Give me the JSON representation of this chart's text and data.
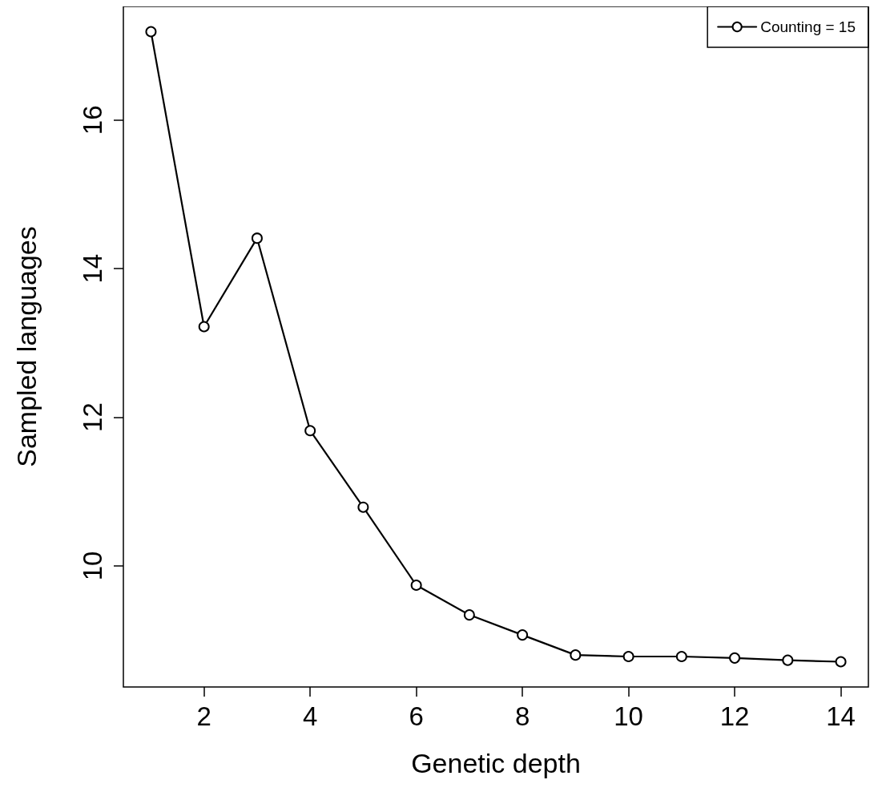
{
  "chart_data": {
    "type": "line",
    "xlabel": "Genetic depth",
    "ylabel": "Sampled languages",
    "x": [
      1,
      2,
      3,
      4,
      5,
      6,
      7,
      8,
      9,
      10,
      11,
      12,
      13,
      14
    ],
    "series": [
      {
        "name": "Counting = 15",
        "color": "#000000",
        "values": [
          17.19,
          13.22,
          14.41,
          11.82,
          10.79,
          9.74,
          9.34,
          9.07,
          8.8,
          8.78,
          8.78,
          8.76,
          8.73,
          8.71
        ]
      }
    ],
    "xlim": [
      0.48,
      14.52
    ],
    "ylim": [
      8.37,
      17.53
    ],
    "xticks": [
      2,
      4,
      6,
      8,
      10,
      12,
      14
    ],
    "yticks": [
      10,
      12,
      14,
      16
    ],
    "marker": "circle",
    "line_style": "solid",
    "legend": "top right",
    "grid": false
  }
}
